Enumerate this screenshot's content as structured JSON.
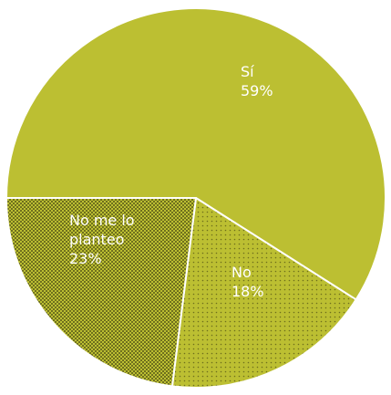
{
  "chart_data": {
    "type": "pie",
    "title": "",
    "slices": [
      {
        "label": "Sí",
        "value": 59,
        "display": "59%",
        "color": "#bcbf32",
        "pattern": "none"
      },
      {
        "label": "No",
        "value": 18,
        "display": "18%",
        "color": "#bcbf32",
        "pattern": "sparse-dots"
      },
      {
        "label": "No me lo planteo",
        "label_lines": [
          "No me lo",
          "planteo"
        ],
        "value": 23,
        "display": "23%",
        "color": "#bcbf32",
        "pattern": "dense-dots"
      }
    ],
    "start_angle_deg": 180,
    "direction": "clockwise",
    "legend": "none",
    "separator_color": "#ffffff",
    "dot_color": "#6e6f1c"
  }
}
